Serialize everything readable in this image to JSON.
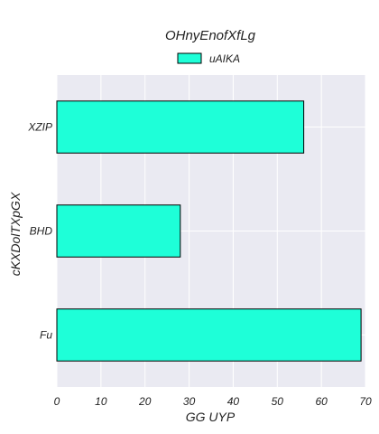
{
  "chart_data": {
    "type": "bar",
    "orientation": "horizontal",
    "title": "OHnyEnofXfLg",
    "xlabel": "GG UYP",
    "ylabel": "cKXDolTXpGX",
    "categories": [
      "XZIP",
      "BHD",
      "Fu"
    ],
    "series": [
      {
        "name": "uAIKA",
        "values": [
          56,
          28,
          69
        ],
        "color": "#1effd8"
      }
    ],
    "xlim": [
      0,
      70
    ],
    "xticks": [
      0,
      10,
      20,
      30,
      40,
      50,
      60,
      70
    ],
    "grid": true,
    "legend_position": "top-center",
    "colors": {
      "plot_background": "#eaeaf2",
      "grid": "#ffffff",
      "bar_edge": "#000000"
    }
  }
}
